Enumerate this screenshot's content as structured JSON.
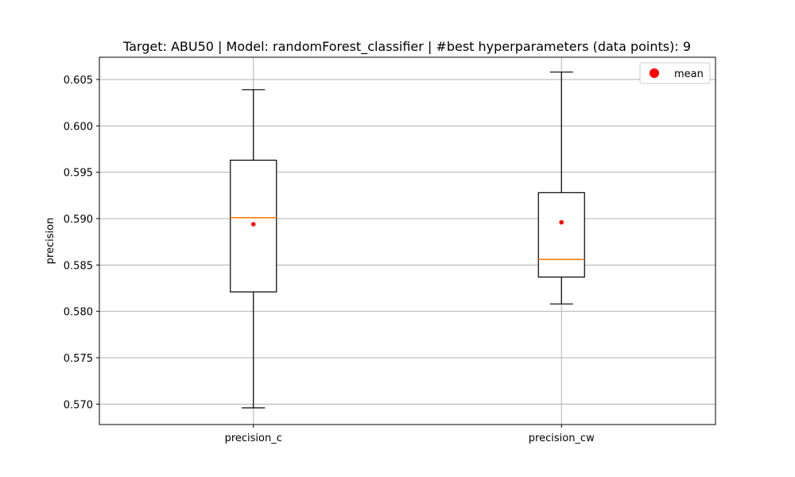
{
  "chart_data": {
    "type": "box",
    "title": "Target: ABU50 | Model: randomForest_classifier | #best hyperparameters (data points): 9",
    "xlabel": "",
    "ylabel": "precision",
    "ylim": [
      0.5678,
      0.6074
    ],
    "yticks": [
      "0.570",
      "0.575",
      "0.580",
      "0.585",
      "0.590",
      "0.595",
      "0.600",
      "0.605"
    ],
    "grid": true,
    "legend": {
      "position": "top-right",
      "entries": [
        {
          "label": "mean",
          "color": "#ff0000"
        }
      ]
    },
    "colors": {
      "box": "#000000",
      "median": "#ff7f0e",
      "mean": "#ff0000",
      "grid": "#b0b0b0"
    },
    "categories": [
      "precision_c",
      "precision_cw"
    ],
    "boxes": [
      {
        "label": "precision_c",
        "whisker_low": 0.5696,
        "q1": 0.5821,
        "median": 0.5901,
        "q3": 0.5963,
        "whisker_high": 0.6039,
        "mean": 0.5894
      },
      {
        "label": "precision_cw",
        "whisker_low": 0.5808,
        "q1": 0.5837,
        "median": 0.5856,
        "q3": 0.5928,
        "whisker_high": 0.6058,
        "mean": 0.5896
      }
    ]
  }
}
